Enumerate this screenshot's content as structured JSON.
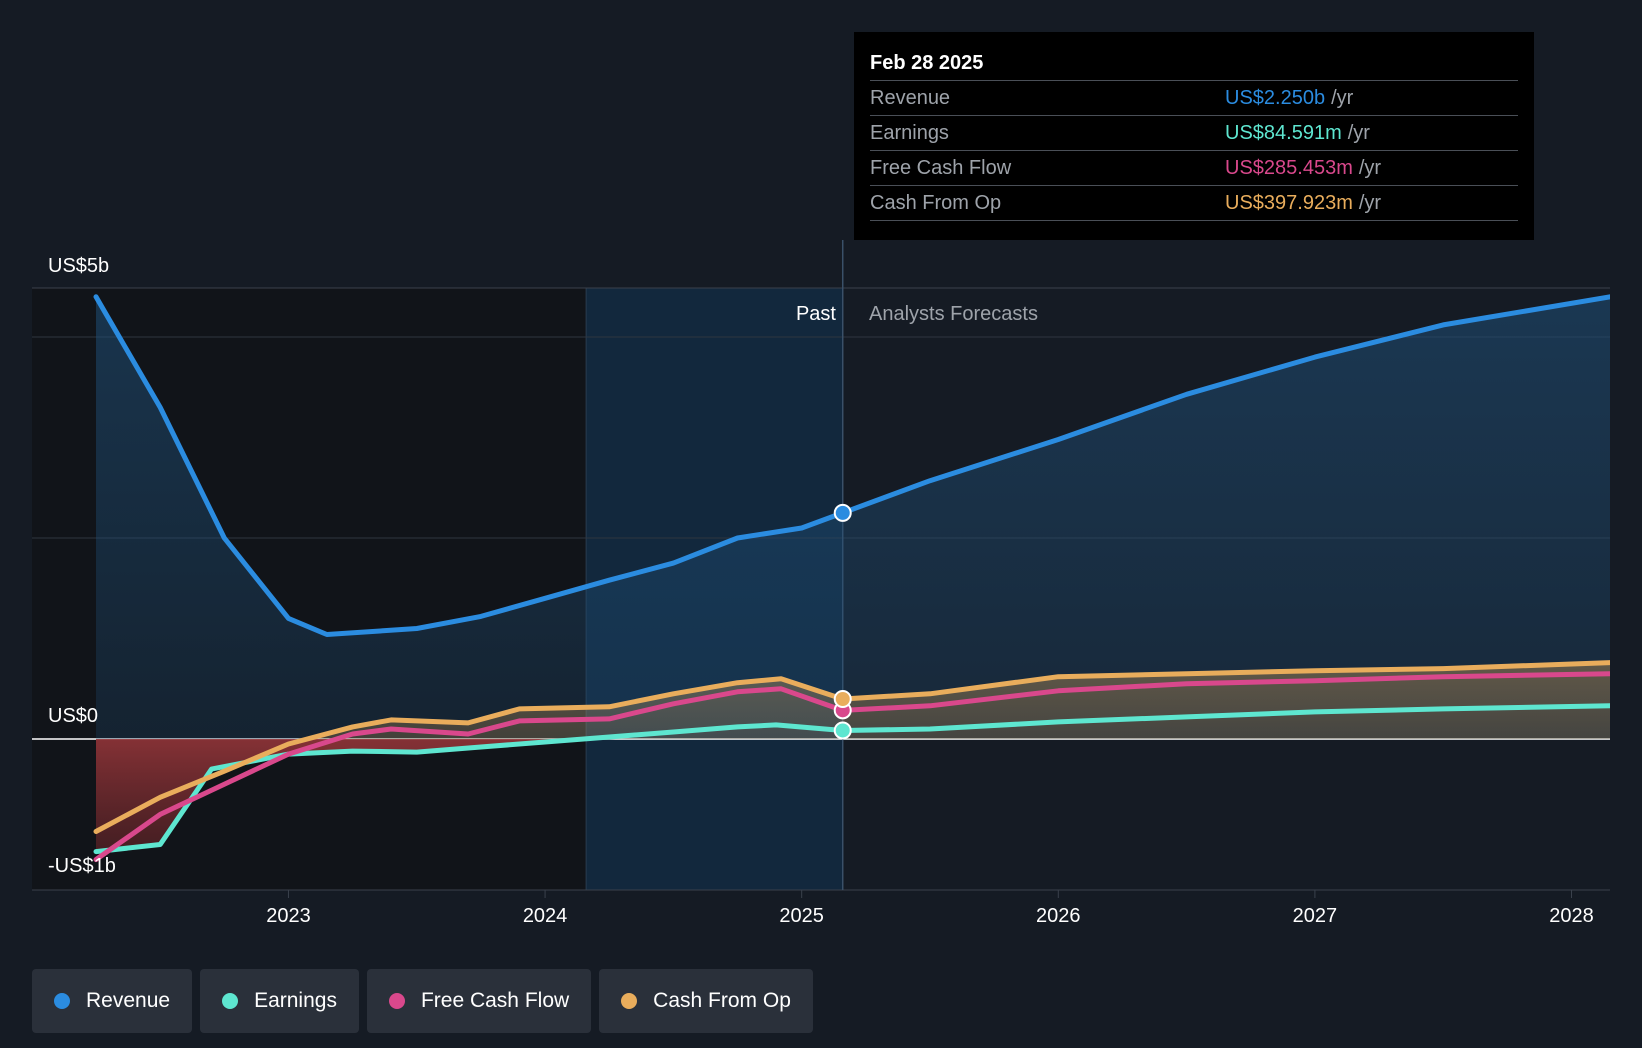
{
  "chart_data": {
    "type": "line",
    "y_unit_label_top": "US$5b",
    "y_unit_label_zero": "US$0",
    "y_unit_label_bottom": "-US$1b",
    "ylim": [
      -1.5,
      4.5
    ],
    "xlim": [
      2022.25,
      2028.15
    ],
    "x_ticks": [
      {
        "value": 2023,
        "label": "2023"
      },
      {
        "value": 2024,
        "label": "2024"
      },
      {
        "value": 2025,
        "label": "2025"
      },
      {
        "value": 2026,
        "label": "2026"
      },
      {
        "value": 2027,
        "label": "2027"
      },
      {
        "value": 2028,
        "label": "2028"
      }
    ],
    "grid_y": [
      4.0,
      2.0,
      0
    ],
    "past_start": 2024.16,
    "forecast_start": 2025.16,
    "past_label": "Past",
    "forecast_label": "Analysts Forecasts",
    "legend_placement": "bottom-left",
    "series": [
      {
        "name": "Revenue",
        "color": "#2b8ce0",
        "points": [
          [
            2022.25,
            4.4
          ],
          [
            2022.5,
            3.3
          ],
          [
            2022.75,
            2.0
          ],
          [
            2023.0,
            1.2
          ],
          [
            2023.15,
            1.04
          ],
          [
            2023.5,
            1.1
          ],
          [
            2023.75,
            1.22
          ],
          [
            2024.0,
            1.4
          ],
          [
            2024.25,
            1.58
          ],
          [
            2024.5,
            1.75
          ],
          [
            2024.75,
            2.0
          ],
          [
            2025.0,
            2.1
          ],
          [
            2025.16,
            2.25
          ],
          [
            2025.5,
            2.57
          ],
          [
            2026.0,
            2.98
          ],
          [
            2026.5,
            3.43
          ],
          [
            2027.0,
            3.8
          ],
          [
            2027.5,
            4.12
          ],
          [
            2028.15,
            4.4
          ]
        ]
      },
      {
        "name": "Earnings",
        "color": "#5ee6d0",
        "points": [
          [
            2022.25,
            -1.12
          ],
          [
            2022.5,
            -1.05
          ],
          [
            2022.7,
            -0.3
          ],
          [
            2023.0,
            -0.15
          ],
          [
            2023.25,
            -0.12
          ],
          [
            2023.5,
            -0.13
          ],
          [
            2023.75,
            -0.08
          ],
          [
            2024.0,
            -0.03
          ],
          [
            2024.25,
            0.02
          ],
          [
            2024.5,
            0.07
          ],
          [
            2024.75,
            0.12
          ],
          [
            2024.9,
            0.14
          ],
          [
            2025.16,
            0.085
          ],
          [
            2025.5,
            0.1
          ],
          [
            2026.0,
            0.17
          ],
          [
            2026.5,
            0.22
          ],
          [
            2027.0,
            0.27
          ],
          [
            2027.5,
            0.3
          ],
          [
            2028.15,
            0.33
          ]
        ]
      },
      {
        "name": "Free Cash Flow",
        "color": "#d9488c",
        "points": [
          [
            2022.25,
            -1.2
          ],
          [
            2022.5,
            -0.75
          ],
          [
            2022.75,
            -0.45
          ],
          [
            2023.0,
            -0.15
          ],
          [
            2023.25,
            0.05
          ],
          [
            2023.4,
            0.1
          ],
          [
            2023.7,
            0.05
          ],
          [
            2023.9,
            0.18
          ],
          [
            2024.25,
            0.2
          ],
          [
            2024.5,
            0.35
          ],
          [
            2024.75,
            0.47
          ],
          [
            2024.92,
            0.5
          ],
          [
            2025.16,
            0.285
          ],
          [
            2025.5,
            0.33
          ],
          [
            2026.0,
            0.48
          ],
          [
            2026.5,
            0.55
          ],
          [
            2027.0,
            0.58
          ],
          [
            2027.5,
            0.62
          ],
          [
            2028.15,
            0.65
          ]
        ]
      },
      {
        "name": "Cash From Op",
        "color": "#e9ad5c",
        "points": [
          [
            2022.25,
            -0.92
          ],
          [
            2022.5,
            -0.58
          ],
          [
            2022.75,
            -0.32
          ],
          [
            2023.0,
            -0.05
          ],
          [
            2023.25,
            0.12
          ],
          [
            2023.4,
            0.19
          ],
          [
            2023.7,
            0.16
          ],
          [
            2023.9,
            0.3
          ],
          [
            2024.25,
            0.32
          ],
          [
            2024.5,
            0.45
          ],
          [
            2024.75,
            0.56
          ],
          [
            2024.92,
            0.6
          ],
          [
            2025.16,
            0.398
          ],
          [
            2025.5,
            0.45
          ],
          [
            2026.0,
            0.62
          ],
          [
            2026.5,
            0.65
          ],
          [
            2027.0,
            0.68
          ],
          [
            2027.5,
            0.7
          ],
          [
            2028.15,
            0.76
          ]
        ]
      }
    ],
    "tooltip": {
      "date": "Feb 28 2025",
      "rows": [
        {
          "name": "Revenue",
          "value": "US$2.250b",
          "unit": "/yr",
          "color": "#2b8ce0"
        },
        {
          "name": "Earnings",
          "value": "US$84.591m",
          "unit": "/yr",
          "color": "#5ee6d0"
        },
        {
          "name": "Free Cash Flow",
          "value": "US$285.453m",
          "unit": "/yr",
          "color": "#d9488c"
        },
        {
          "name": "Cash From Op",
          "value": "US$397.923m",
          "unit": "/yr",
          "color": "#e9ad5c"
        }
      ]
    },
    "legend": [
      {
        "name": "Revenue",
        "color": "#2b8ce0"
      },
      {
        "name": "Earnings",
        "color": "#5ee6d0"
      },
      {
        "name": "Free Cash Flow",
        "color": "#d9488c"
      },
      {
        "name": "Cash From Op",
        "color": "#e9ad5c"
      }
    ]
  }
}
